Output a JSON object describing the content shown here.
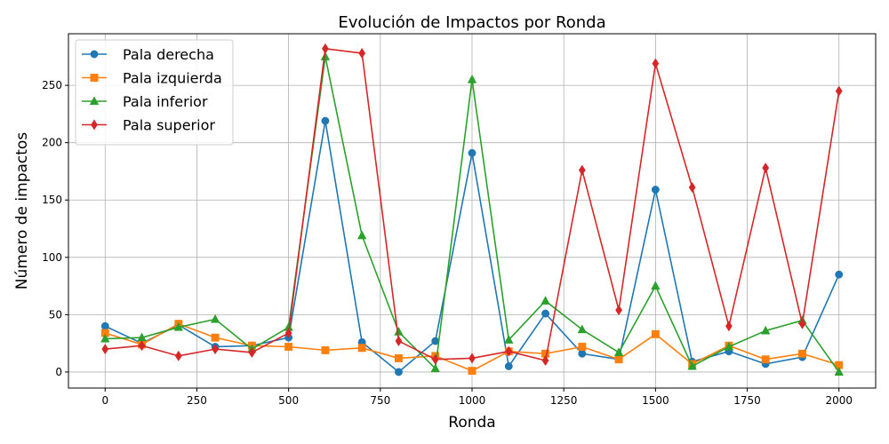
{
  "chart_data": {
    "type": "line",
    "title": "Evolución de Impactos por Ronda",
    "xlabel": "Ronda",
    "ylabel": "Número de impactos",
    "xlim": [
      -100,
      2100
    ],
    "ylim": [
      -14,
      295
    ],
    "xticks": [
      0,
      250,
      500,
      750,
      1000,
      1250,
      1500,
      1750,
      2000
    ],
    "yticks": [
      0,
      50,
      100,
      150,
      200,
      250
    ],
    "grid": true,
    "legend_position": "top-left",
    "x": [
      0,
      100,
      200,
      300,
      400,
      500,
      600,
      700,
      800,
      900,
      1000,
      1100,
      1200,
      1300,
      1400,
      1500,
      1600,
      1700,
      1800,
      1900,
      2000
    ],
    "series": [
      {
        "name": "Pala derecha",
        "color": "#1f77b4",
        "marker": "circle",
        "values": [
          40,
          25,
          41,
          22,
          23,
          30,
          219,
          26,
          0,
          27,
          191,
          5,
          51,
          16,
          11,
          159,
          9,
          18,
          7,
          13,
          85
        ]
      },
      {
        "name": "Pala izquierda",
        "color": "#ff7f0e",
        "marker": "square",
        "values": [
          34,
          24,
          42,
          30,
          23,
          22,
          19,
          21,
          12,
          14,
          1,
          18,
          16,
          22,
          11,
          33,
          7,
          23,
          11,
          16,
          6
        ]
      },
      {
        "name": "Pala inferior",
        "color": "#2ca02c",
        "marker": "triangle",
        "values": [
          29,
          30,
          39,
          46,
          20,
          39,
          275,
          119,
          35,
          3,
          255,
          28,
          62,
          37,
          17,
          75,
          5,
          22,
          36,
          45,
          0
        ]
      },
      {
        "name": "Pala superior",
        "color": "#d62728",
        "marker": "diamond",
        "values": [
          20,
          23,
          14,
          20,
          17,
          34,
          282,
          278,
          27,
          11,
          12,
          18,
          10,
          176,
          54,
          269,
          161,
          40,
          178,
          42,
          245
        ]
      }
    ]
  }
}
